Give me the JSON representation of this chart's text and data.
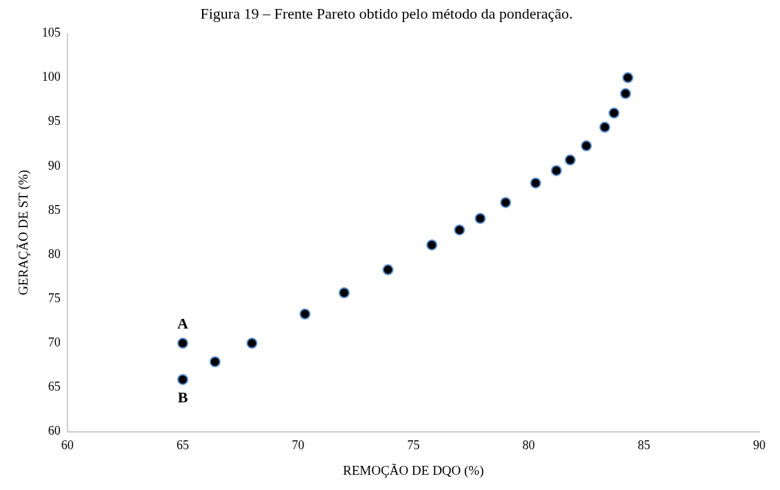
{
  "chart_data": {
    "type": "scatter",
    "title": "Figura 19 – Frente Pareto obtido pelo método da ponderação.",
    "xlabel": "REMOÇÃO DE DQO (%)",
    "ylabel": "GERAÇÃO DE ST (%)",
    "x": [
      65.0,
      65.0,
      66.4,
      68.0,
      70.3,
      72.0,
      73.9,
      75.8,
      77.0,
      77.9,
      79.0,
      80.3,
      81.2,
      81.8,
      82.5,
      83.3,
      83.7,
      84.2,
      84.3
    ],
    "values": [
      70.0,
      65.9,
      67.9,
      70.0,
      73.3,
      75.7,
      78.3,
      81.1,
      82.8,
      84.1,
      85.9,
      88.1,
      89.5,
      90.7,
      92.3,
      94.4,
      96.0,
      98.2,
      100.0
    ],
    "color": "#000000",
    "marker": "circle",
    "xlim": [
      60,
      90
    ],
    "xticks": [
      60,
      65,
      70,
      75,
      80,
      85,
      90
    ],
    "ylim": [
      60,
      105
    ],
    "yticks": [
      60,
      65,
      70,
      75,
      80,
      85,
      90,
      95,
      100,
      105
    ],
    "grid": false,
    "legend": false,
    "annotations": [
      {
        "text": "A",
        "x": 65.0,
        "y": 70.0
      },
      {
        "text": "B",
        "x": 65.0,
        "y": 65.9
      }
    ]
  }
}
